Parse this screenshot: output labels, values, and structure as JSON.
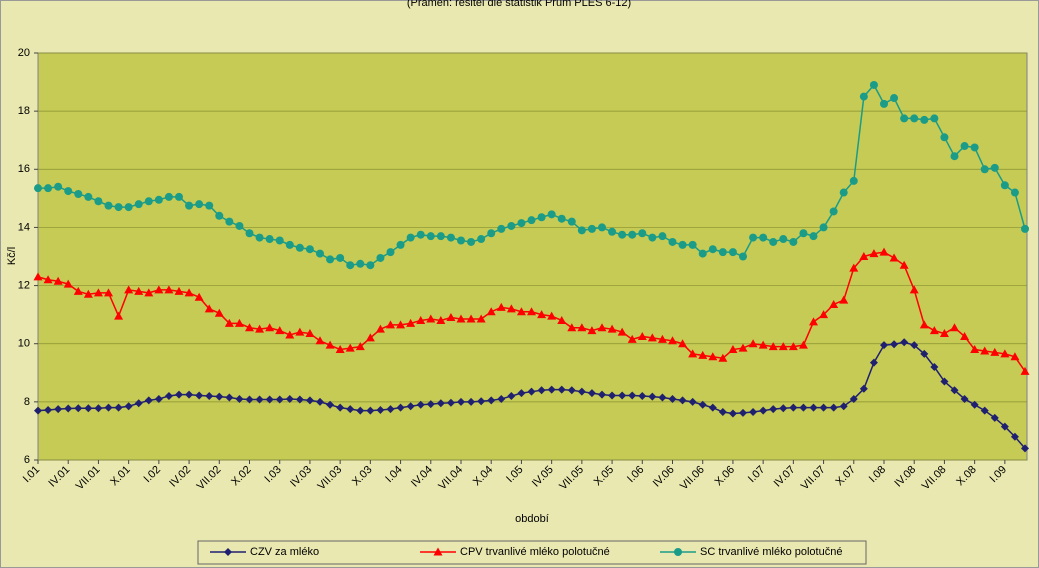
{
  "chart_data": {
    "type": "line",
    "title": "(Pramen: řešitel dle statistik Prům PLES 6-12)",
    "ylabel": "Kč/l",
    "xlabel": "období",
    "ylim": [
      6,
      20
    ],
    "yticks": [
      6,
      8,
      10,
      12,
      14,
      16,
      18,
      20
    ],
    "grid": true,
    "legend": "bottom",
    "categories": [
      "I.01",
      null,
      null,
      "IV.01",
      null,
      null,
      "VII.01",
      null,
      null,
      "X.01",
      null,
      null,
      "I.02",
      null,
      null,
      "IV.02",
      null,
      null,
      "VII.02",
      null,
      null,
      "X.02",
      null,
      null,
      "I.03",
      null,
      null,
      "IV.03",
      null,
      null,
      "VII.03",
      null,
      null,
      "X.03",
      null,
      null,
      "I.04",
      null,
      null,
      "IV.04",
      null,
      null,
      "VII.04",
      null,
      null,
      "X.04",
      null,
      null,
      "I.05",
      null,
      null,
      "IV.05",
      null,
      null,
      "VII.05",
      null,
      null,
      "X.05",
      null,
      null,
      "I.06",
      null,
      null,
      "IV.06",
      null,
      null,
      "VII.06",
      null,
      null,
      "X.06",
      null,
      null,
      "I.07",
      null,
      null,
      "IV.07",
      null,
      null,
      "VII.07",
      null,
      null,
      "X.07",
      null,
      null,
      "I.08",
      null,
      null,
      "IV.08",
      null,
      null,
      "VII.08",
      null,
      null,
      "X.08",
      null,
      null,
      "I.09",
      null,
      null
    ],
    "series": [
      {
        "name": "CZV za mléko",
        "color": "#202070",
        "marker": "diamond",
        "values": [
          7.7,
          7.72,
          7.75,
          7.77,
          7.78,
          7.78,
          7.78,
          7.8,
          7.8,
          7.85,
          7.95,
          8.05,
          8.1,
          8.2,
          8.25,
          8.25,
          8.22,
          8.2,
          8.18,
          8.15,
          8.1,
          8.08,
          8.08,
          8.08,
          8.08,
          8.1,
          8.08,
          8.05,
          8.0,
          7.9,
          7.8,
          7.75,
          7.7,
          7.7,
          7.72,
          7.75,
          7.8,
          7.85,
          7.9,
          7.92,
          7.95,
          7.97,
          8.0,
          8.0,
          8.02,
          8.05,
          8.1,
          8.2,
          8.3,
          8.35,
          8.4,
          8.42,
          8.42,
          8.4,
          8.35,
          8.3,
          8.25,
          8.22,
          8.22,
          8.22,
          8.2,
          8.18,
          8.15,
          8.1,
          8.05,
          8.0,
          7.9,
          7.8,
          7.65,
          7.6,
          7.62,
          7.65,
          7.7,
          7.75,
          7.78,
          7.8,
          7.8,
          7.8,
          7.8,
          7.8,
          7.85,
          8.1,
          8.45,
          9.35,
          9.95,
          9.98,
          10.05,
          9.95,
          9.65,
          9.2,
          8.7,
          8.4,
          8.1,
          7.9,
          7.7,
          7.45,
          7.15,
          6.8,
          6.4
        ]
      },
      {
        "name": "CPV trvanlivé mléko polotučné",
        "color": "#ff0000",
        "marker": "triangle",
        "values": [
          12.3,
          12.2,
          12.15,
          12.05,
          11.8,
          11.7,
          11.75,
          11.75,
          10.95,
          11.85,
          11.8,
          11.75,
          11.85,
          11.85,
          11.8,
          11.75,
          11.6,
          11.2,
          11.05,
          10.7,
          10.7,
          10.55,
          10.5,
          10.55,
          10.45,
          10.3,
          10.4,
          10.35,
          10.1,
          9.95,
          9.8,
          9.85,
          9.9,
          10.2,
          10.5,
          10.65,
          10.65,
          10.7,
          10.8,
          10.85,
          10.8,
          10.9,
          10.85,
          10.85,
          10.85,
          11.1,
          11.25,
          11.2,
          11.1,
          11.1,
          11.0,
          10.95,
          10.8,
          10.55,
          10.55,
          10.45,
          10.55,
          10.5,
          10.4,
          10.15,
          10.25,
          10.2,
          10.15,
          10.1,
          10.0,
          9.65,
          9.6,
          9.55,
          9.5,
          9.8,
          9.85,
          10.0,
          9.95,
          9.9,
          9.9,
          9.9,
          9.95,
          10.75,
          11.0,
          11.35,
          11.5,
          12.6,
          13.0,
          13.1,
          13.15,
          12.95,
          12.7,
          11.85,
          10.65,
          10.45,
          10.35,
          10.55,
          10.25,
          9.8,
          9.75,
          9.7,
          9.65,
          9.55,
          9.05
        ]
      },
      {
        "name": "SC trvanlivé mléko polotučné",
        "color": "#1a9c88",
        "marker": "circle",
        "values": [
          15.35,
          15.35,
          15.4,
          15.25,
          15.15,
          15.05,
          14.9,
          14.75,
          14.7,
          14.7,
          14.8,
          14.9,
          14.95,
          15.05,
          15.05,
          14.75,
          14.8,
          14.75,
          14.4,
          14.2,
          14.05,
          13.8,
          13.65,
          13.6,
          13.55,
          13.4,
          13.3,
          13.25,
          13.1,
          12.9,
          12.95,
          12.7,
          12.75,
          12.7,
          12.95,
          13.15,
          13.4,
          13.65,
          13.75,
          13.7,
          13.7,
          13.65,
          13.55,
          13.5,
          13.6,
          13.8,
          13.95,
          14.05,
          14.15,
          14.25,
          14.35,
          14.45,
          14.3,
          14.2,
          13.9,
          13.95,
          14.0,
          13.85,
          13.75,
          13.75,
          13.8,
          13.65,
          13.7,
          13.5,
          13.4,
          13.4,
          13.1,
          13.25,
          13.15,
          13.15,
          13.0,
          13.65,
          13.65,
          13.5,
          13.6,
          13.5,
          13.8,
          13.7,
          14.0,
          14.55,
          15.2,
          15.6,
          18.5,
          18.9,
          18.25,
          18.45,
          17.75,
          17.75,
          17.7,
          17.75,
          17.1,
          16.45,
          16.8,
          16.75,
          16.0,
          16.05,
          15.45,
          15.2,
          13.95
        ]
      }
    ]
  }
}
